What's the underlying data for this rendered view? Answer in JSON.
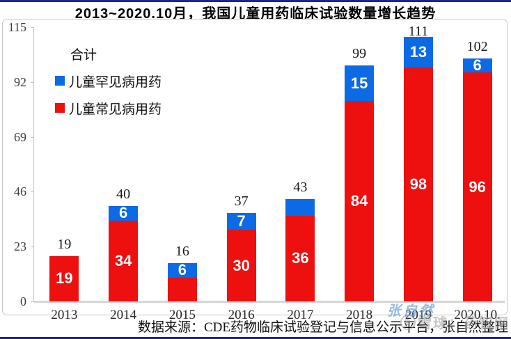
{
  "title": "2013~2020.10月，我国儿童用药临床试验数量增长趋势",
  "legend": {
    "total_label": "合计",
    "rare": "儿童罕见病用药",
    "common": "儿童常见病用药"
  },
  "source_note": "数据来源：CDE药物临床试验登记与信息公示平台，张自然整理",
  "watermarks": {
    "author": "张自然",
    "site": "雪球：药智网",
    "site_icon": "snowflake-circle-icon"
  },
  "colors": {
    "rare_blue": "#0c6ae4",
    "common_red": "#ee0f0f",
    "rule_navy": "#1c2786",
    "axis_gray": "#c2c2c2"
  },
  "chart_data": {
    "type": "bar",
    "stacked": true,
    "title": "2013~2020.10月，我国儿童用药临床试验数量增长趋势",
    "categories": [
      "2013",
      "2014",
      "2015",
      "2016",
      "2017",
      "2018",
      "2019",
      "2020.10."
    ],
    "series": [
      {
        "name": "儿童常见病用药",
        "color": "#ee0f0f",
        "values": [
          19,
          34,
          10,
          30,
          36,
          84,
          98,
          96
        ],
        "labels": [
          "19",
          "34",
          "",
          "30",
          "36",
          "84",
          "98",
          "96"
        ]
      },
      {
        "name": "儿童罕见病用药",
        "color": "#0c6ae4",
        "values": [
          0,
          6,
          6,
          7,
          7,
          15,
          13,
          6
        ],
        "labels": [
          "",
          "6",
          "6",
          "7",
          "",
          "15",
          "13",
          "6"
        ]
      }
    ],
    "totals": [
      19,
      40,
      16,
      37,
      43,
      99,
      111,
      102
    ],
    "y_ticks": [
      0,
      23,
      46,
      69,
      92,
      115
    ],
    "ylim": [
      0,
      115
    ],
    "xlabel": "",
    "ylabel": "",
    "grid": false,
    "legend_position": "top-left"
  }
}
